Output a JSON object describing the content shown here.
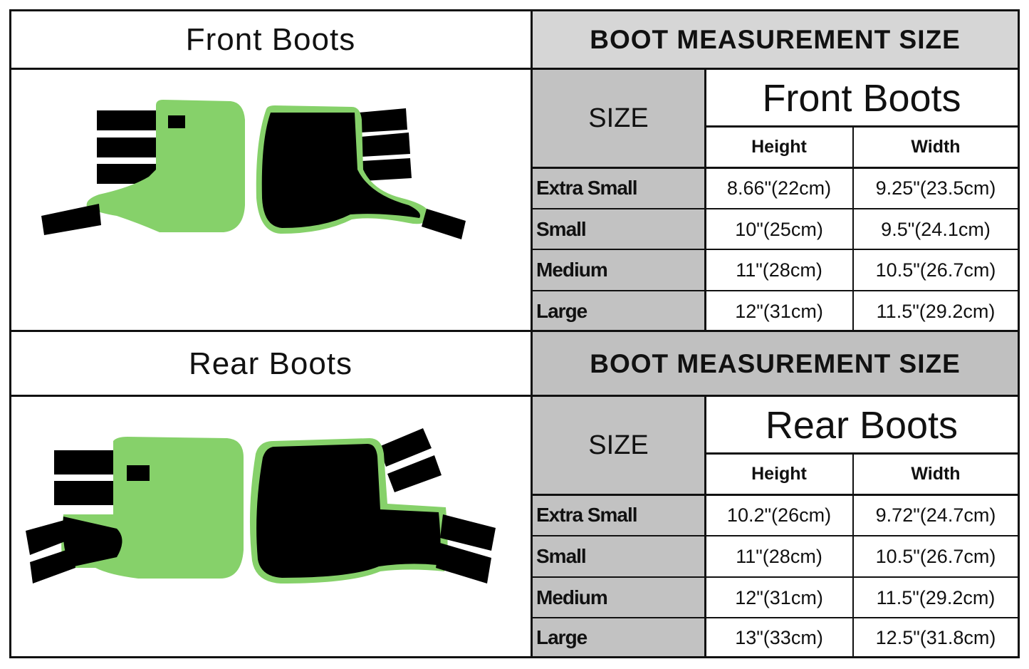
{
  "colors": {
    "boot_green": "#86d16a",
    "strap": "#000000",
    "header_gray": "#d6d6d6",
    "size_gray": "#c0c0c0"
  },
  "sections": [
    {
      "left_title": "Front Boots",
      "table_header": "BOOT MEASUREMENT SIZE",
      "size_label": "SIZE",
      "boot_type": "Front Boots",
      "columns": [
        "Height",
        "Width"
      ],
      "rows": [
        {
          "size": "Extra Small",
          "height": "8.66\"(22cm)",
          "width": "9.25\"(23.5cm)"
        },
        {
          "size": "Small",
          "height": "10\"(25cm)",
          "width": "9.5\"(24.1cm)"
        },
        {
          "size": "Medium",
          "height": "11\"(28cm)",
          "width": "10.5\"(26.7cm)"
        },
        {
          "size": "Large",
          "height": "12\"(31cm)",
          "width": "11.5\"(29.2cm)"
        }
      ]
    },
    {
      "left_title": "Rear Boots",
      "table_header": "BOOT MEASUREMENT SIZE",
      "size_label": "SIZE",
      "boot_type": "Rear Boots",
      "columns": [
        "Height",
        "Width"
      ],
      "rows": [
        {
          "size": "Extra Small",
          "height": "10.2\"(26cm)",
          "width": "9.72\"(24.7cm)"
        },
        {
          "size": "Small",
          "height": "11\"(28cm)",
          "width": "10.5\"(26.7cm)"
        },
        {
          "size": "Medium",
          "height": "12\"(31cm)",
          "width": "11.5\"(29.2cm)"
        },
        {
          "size": "Large",
          "height": "13\"(33cm)",
          "width": "12.5\"(31.8cm)"
        }
      ]
    }
  ]
}
